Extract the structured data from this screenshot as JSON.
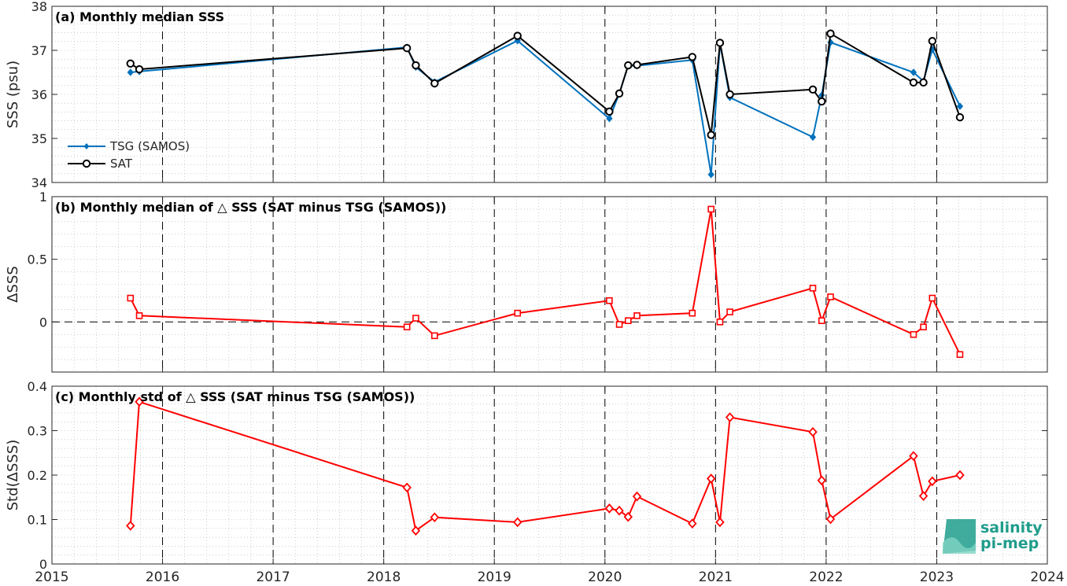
{
  "colors": {
    "tsg": "#0072BD",
    "sat": "#000000",
    "delta": "#ff0000",
    "grid": "#b0b0b0",
    "logo": "#1f9d8c"
  },
  "x_axis": {
    "xlim": [
      2015,
      2024
    ],
    "ticks": [
      "2015",
      "2016",
      "2017",
      "2018",
      "2019",
      "2020",
      "2021",
      "2022",
      "2023",
      "2024"
    ]
  },
  "logo": {
    "line1": "salinity",
    "line2": "pi-mep"
  },
  "chart_data": [
    {
      "type": "line",
      "title": "(a) Monthly median SSS",
      "ylabel": "SSS (psu)",
      "ylim": [
        34,
        38
      ],
      "yticks": [
        "34",
        "35",
        "36",
        "37",
        "38"
      ],
      "legend": "bottom-left",
      "x": [
        2015.71,
        2015.79,
        2018.21,
        2018.29,
        2018.46,
        2019.21,
        2020.04,
        2020.13,
        2020.21,
        2020.29,
        2020.79,
        2020.96,
        2021.04,
        2021.13,
        2021.88,
        2021.96,
        2022.04,
        2022.79,
        2022.88,
        2022.96,
        2023.21
      ],
      "series": [
        {
          "name": "TSG (SAMOS)",
          "marker": "dot",
          "values": [
            36.5,
            36.52,
            37.07,
            36.62,
            36.28,
            37.22,
            35.45,
            36.02,
            36.65,
            36.65,
            36.78,
            34.18,
            37.15,
            35.93,
            35.03,
            35.98,
            37.18,
            36.5,
            36.3,
            37.02,
            35.73
          ]
        },
        {
          "name": "SAT",
          "marker": "circle",
          "values": [
            36.7,
            36.57,
            37.05,
            36.66,
            36.25,
            37.33,
            35.61,
            36.02,
            36.66,
            36.67,
            36.85,
            35.08,
            37.17,
            36.0,
            36.11,
            35.84,
            37.38,
            36.27,
            36.27,
            37.21,
            35.48
          ]
        }
      ],
      "grid": true
    },
    {
      "type": "line",
      "title": "(b) Monthly median of △ SSS (SAT minus TSG (SAMOS))",
      "ylabel": "ΔSSS",
      "ylim": [
        -0.4,
        1
      ],
      "yticks": [
        "0",
        "0.5",
        "1"
      ],
      "x": [
        2015.71,
        2015.79,
        2018.21,
        2018.29,
        2018.46,
        2019.21,
        2020.04,
        2020.13,
        2020.21,
        2020.29,
        2020.79,
        2020.96,
        2021.04,
        2021.13,
        2021.88,
        2021.96,
        2022.04,
        2022.79,
        2022.88,
        2022.96,
        2023.21
      ],
      "series": [
        {
          "marker": "square",
          "values": [
            0.19,
            0.05,
            -0.04,
            0.03,
            -0.11,
            0.07,
            0.17,
            -0.02,
            0.01,
            0.05,
            0.07,
            0.9,
            0.0,
            0.08,
            0.27,
            0.01,
            0.2,
            -0.1,
            -0.04,
            0.19,
            -0.26
          ]
        }
      ],
      "zero_line": true,
      "grid": true
    },
    {
      "type": "line",
      "title": "(c) Monthly std of △ SSS (SAT minus TSG (SAMOS))",
      "ylabel": "Std(ΔSSS)",
      "ylim": [
        0,
        0.4
      ],
      "yticks": [
        "0",
        "0.1",
        "0.2",
        "0.3",
        "0.4"
      ],
      "x": [
        2015.71,
        2015.79,
        2018.21,
        2018.29,
        2018.46,
        2019.21,
        2020.04,
        2020.13,
        2020.21,
        2020.29,
        2020.79,
        2020.96,
        2021.04,
        2021.13,
        2021.88,
        2021.96,
        2022.04,
        2022.79,
        2022.88,
        2022.96,
        2023.21
      ],
      "series": [
        {
          "marker": "diamond",
          "values": [
            0.086,
            0.365,
            0.172,
            0.075,
            0.105,
            0.094,
            0.125,
            0.12,
            0.106,
            0.152,
            0.091,
            0.192,
            0.094,
            0.33,
            0.297,
            0.188,
            0.101,
            0.243,
            0.153,
            0.186,
            0.2
          ]
        }
      ],
      "grid": true
    }
  ]
}
